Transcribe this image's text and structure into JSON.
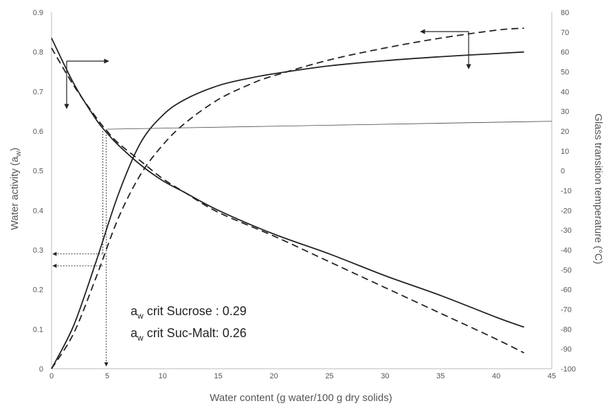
{
  "chart_data": {
    "type": "line",
    "xlabel": "Water content  (g water/100 g dry solids)",
    "ylabel": "Water activity (a",
    "ylabel_sub": "w",
    "ylabel_close": ")",
    "y2label": "Glass transition temperature (°C)",
    "xlim": [
      0,
      45
    ],
    "ylim": [
      0,
      0.9
    ],
    "y2lim": [
      -100,
      80
    ],
    "x_ticks": [
      "0",
      "5",
      "10",
      "15",
      "20",
      "25",
      "30",
      "35",
      "40",
      "45"
    ],
    "y_ticks": [
      "0",
      "0.1",
      "0.2",
      "0.3",
      "0.4",
      "0.5",
      "0.6",
      "0.7",
      "0.8",
      "0.9"
    ],
    "y2_ticks": [
      "-100",
      "-90",
      "-80",
      "-70",
      "-60",
      "-50",
      "-40",
      "-30",
      "-20",
      "-10",
      "0",
      "10",
      "20",
      "30",
      "40",
      "50",
      "60",
      "70",
      "80"
    ],
    "grid": false,
    "series": [
      {
        "style": "solid",
        "axis": "left",
        "x": [
          0,
          2,
          4,
          6,
          8,
          10,
          12,
          15,
          18,
          20,
          25,
          30,
          35,
          40,
          42.5
        ],
        "values": [
          0.0,
          0.11,
          0.27,
          0.44,
          0.57,
          0.64,
          0.68,
          0.715,
          0.735,
          0.745,
          0.765,
          0.778,
          0.788,
          0.796,
          0.8
        ]
      },
      {
        "style": "dashed",
        "axis": "left",
        "x": [
          0,
          2,
          4,
          6,
          8,
          10,
          12,
          15,
          18,
          20,
          25,
          30,
          35,
          40,
          42.5
        ],
        "values": [
          0.0,
          0.09,
          0.23,
          0.38,
          0.49,
          0.565,
          0.62,
          0.68,
          0.72,
          0.74,
          0.78,
          0.81,
          0.835,
          0.855,
          0.86
        ]
      },
      {
        "style": "solid",
        "axis": "right",
        "x": [
          0,
          2,
          4,
          5,
          6,
          8,
          10,
          12,
          15,
          20,
          25,
          30,
          35,
          40,
          42.5
        ],
        "values": [
          67,
          44,
          26,
          19,
          13,
          3,
          -5,
          -11,
          -20,
          -32,
          -42,
          -53,
          -63,
          -74,
          -79
        ]
      },
      {
        "style": "dashed",
        "axis": "right",
        "x": [
          0,
          2,
          4,
          5,
          6,
          8,
          10,
          12,
          15,
          20,
          25,
          30,
          35,
          40,
          42.5
        ],
        "values": [
          62,
          43,
          27,
          20,
          14,
          5,
          -4,
          -11,
          -21,
          -33,
          -46,
          -59,
          -72,
          -85,
          -92
        ]
      },
      {
        "style": "thin",
        "axis": "right",
        "x": [
          5,
          45
        ],
        "values": [
          21,
          25
        ]
      }
    ],
    "guide_lines": {
      "vertical_x": 4.8,
      "vertical_top": 0.605,
      "vertical_bottom": 0.0,
      "aw_arrows": [
        0.29,
        0.26
      ]
    },
    "annotations": [
      {
        "a": "a",
        "sub": "w",
        "text": " crit Sucrose : 0.29"
      },
      {
        "a": "a",
        "sub": "w",
        "text": " crit Suc-Malt: 0.26"
      }
    ]
  }
}
